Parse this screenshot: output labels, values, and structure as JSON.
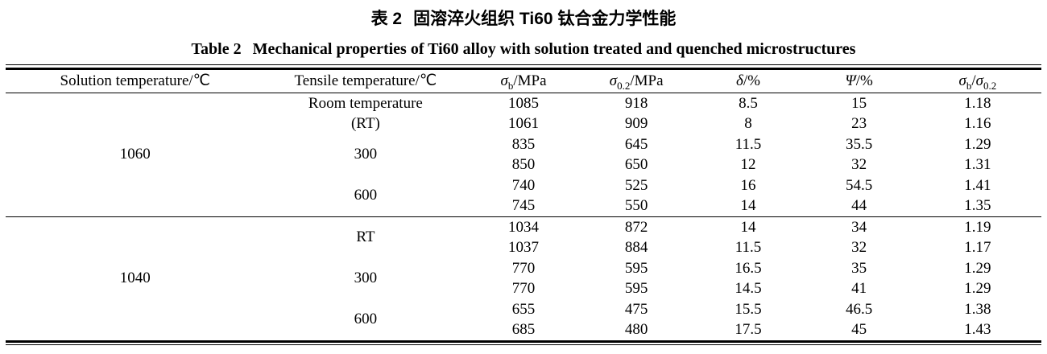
{
  "page": {
    "title_cn": {
      "label": "表 2",
      "text": "固溶淬火组织 Ti60 钛合金力学性能"
    },
    "title_en": {
      "label": "Table 2",
      "text": "Mechanical properties of Ti60 alloy with solution treated and quenched microstructures"
    }
  },
  "colors": {
    "text": "#000000",
    "background": "#ffffff",
    "rule": "#000000"
  },
  "table": {
    "columns": [
      {
        "key": "solution-temperature",
        "segments": [
          {
            "t": "Solution temperature/℃"
          }
        ]
      },
      {
        "key": "tensile-temperature",
        "segments": [
          {
            "t": "Tensile temperature/℃"
          }
        ]
      },
      {
        "key": "sigma-b",
        "segments": [
          {
            "t": "σ",
            "i": true
          },
          {
            "t": "b",
            "sub": true
          },
          {
            "t": "/MPa"
          }
        ]
      },
      {
        "key": "sigma-0-2",
        "segments": [
          {
            "t": "σ",
            "i": true
          },
          {
            "t": "0.2",
            "sub": true
          },
          {
            "t": "/MPa"
          }
        ]
      },
      {
        "key": "delta",
        "segments": [
          {
            "t": "δ",
            "i": true
          },
          {
            "t": "/%"
          }
        ]
      },
      {
        "key": "psi",
        "segments": [
          {
            "t": "Ψ",
            "i": true
          },
          {
            "t": "/%"
          }
        ]
      },
      {
        "key": "sigma-ratio",
        "segments": [
          {
            "t": "σ",
            "i": true
          },
          {
            "t": "b",
            "sub": true
          },
          {
            "t": "/"
          },
          {
            "t": "σ",
            "i": true
          },
          {
            "t": "0.2",
            "sub": true
          }
        ]
      }
    ],
    "groups": [
      {
        "solution_temperature": "1060",
        "conditions": [
          {
            "tensile_temperature": [
              "Room temperature",
              "(RT)"
            ],
            "rows": [
              [
                "1085",
                "918",
                "8.5",
                "15",
                "1.18"
              ],
              [
                "1061",
                "909",
                "8",
                "23",
                "1.16"
              ]
            ]
          },
          {
            "tensile_temperature": [
              "300"
            ],
            "rows": [
              [
                "835",
                "645",
                "11.5",
                "35.5",
                "1.29"
              ],
              [
                "850",
                "650",
                "12",
                "32",
                "1.31"
              ]
            ]
          },
          {
            "tensile_temperature": [
              "600"
            ],
            "rows": [
              [
                "740",
                "525",
                "16",
                "54.5",
                "1.41"
              ],
              [
                "745",
                "550",
                "14",
                "44",
                "1.35"
              ]
            ]
          }
        ]
      },
      {
        "solution_temperature": "1040",
        "conditions": [
          {
            "tensile_temperature": [
              "RT"
            ],
            "rows": [
              [
                "1034",
                "872",
                "14",
                "34",
                "1.19"
              ],
              [
                "1037",
                "884",
                "11.5",
                "32",
                "1.17"
              ]
            ]
          },
          {
            "tensile_temperature": [
              "300"
            ],
            "rows": [
              [
                "770",
                "595",
                "16.5",
                "35",
                "1.29"
              ],
              [
                "770",
                "595",
                "14.5",
                "41",
                "1.29"
              ]
            ]
          },
          {
            "tensile_temperature": [
              "600"
            ],
            "rows": [
              [
                "655",
                "475",
                "15.5",
                "46.5",
                "1.38"
              ],
              [
                "685",
                "480",
                "17.5",
                "45",
                "1.43"
              ]
            ]
          }
        ]
      }
    ]
  }
}
